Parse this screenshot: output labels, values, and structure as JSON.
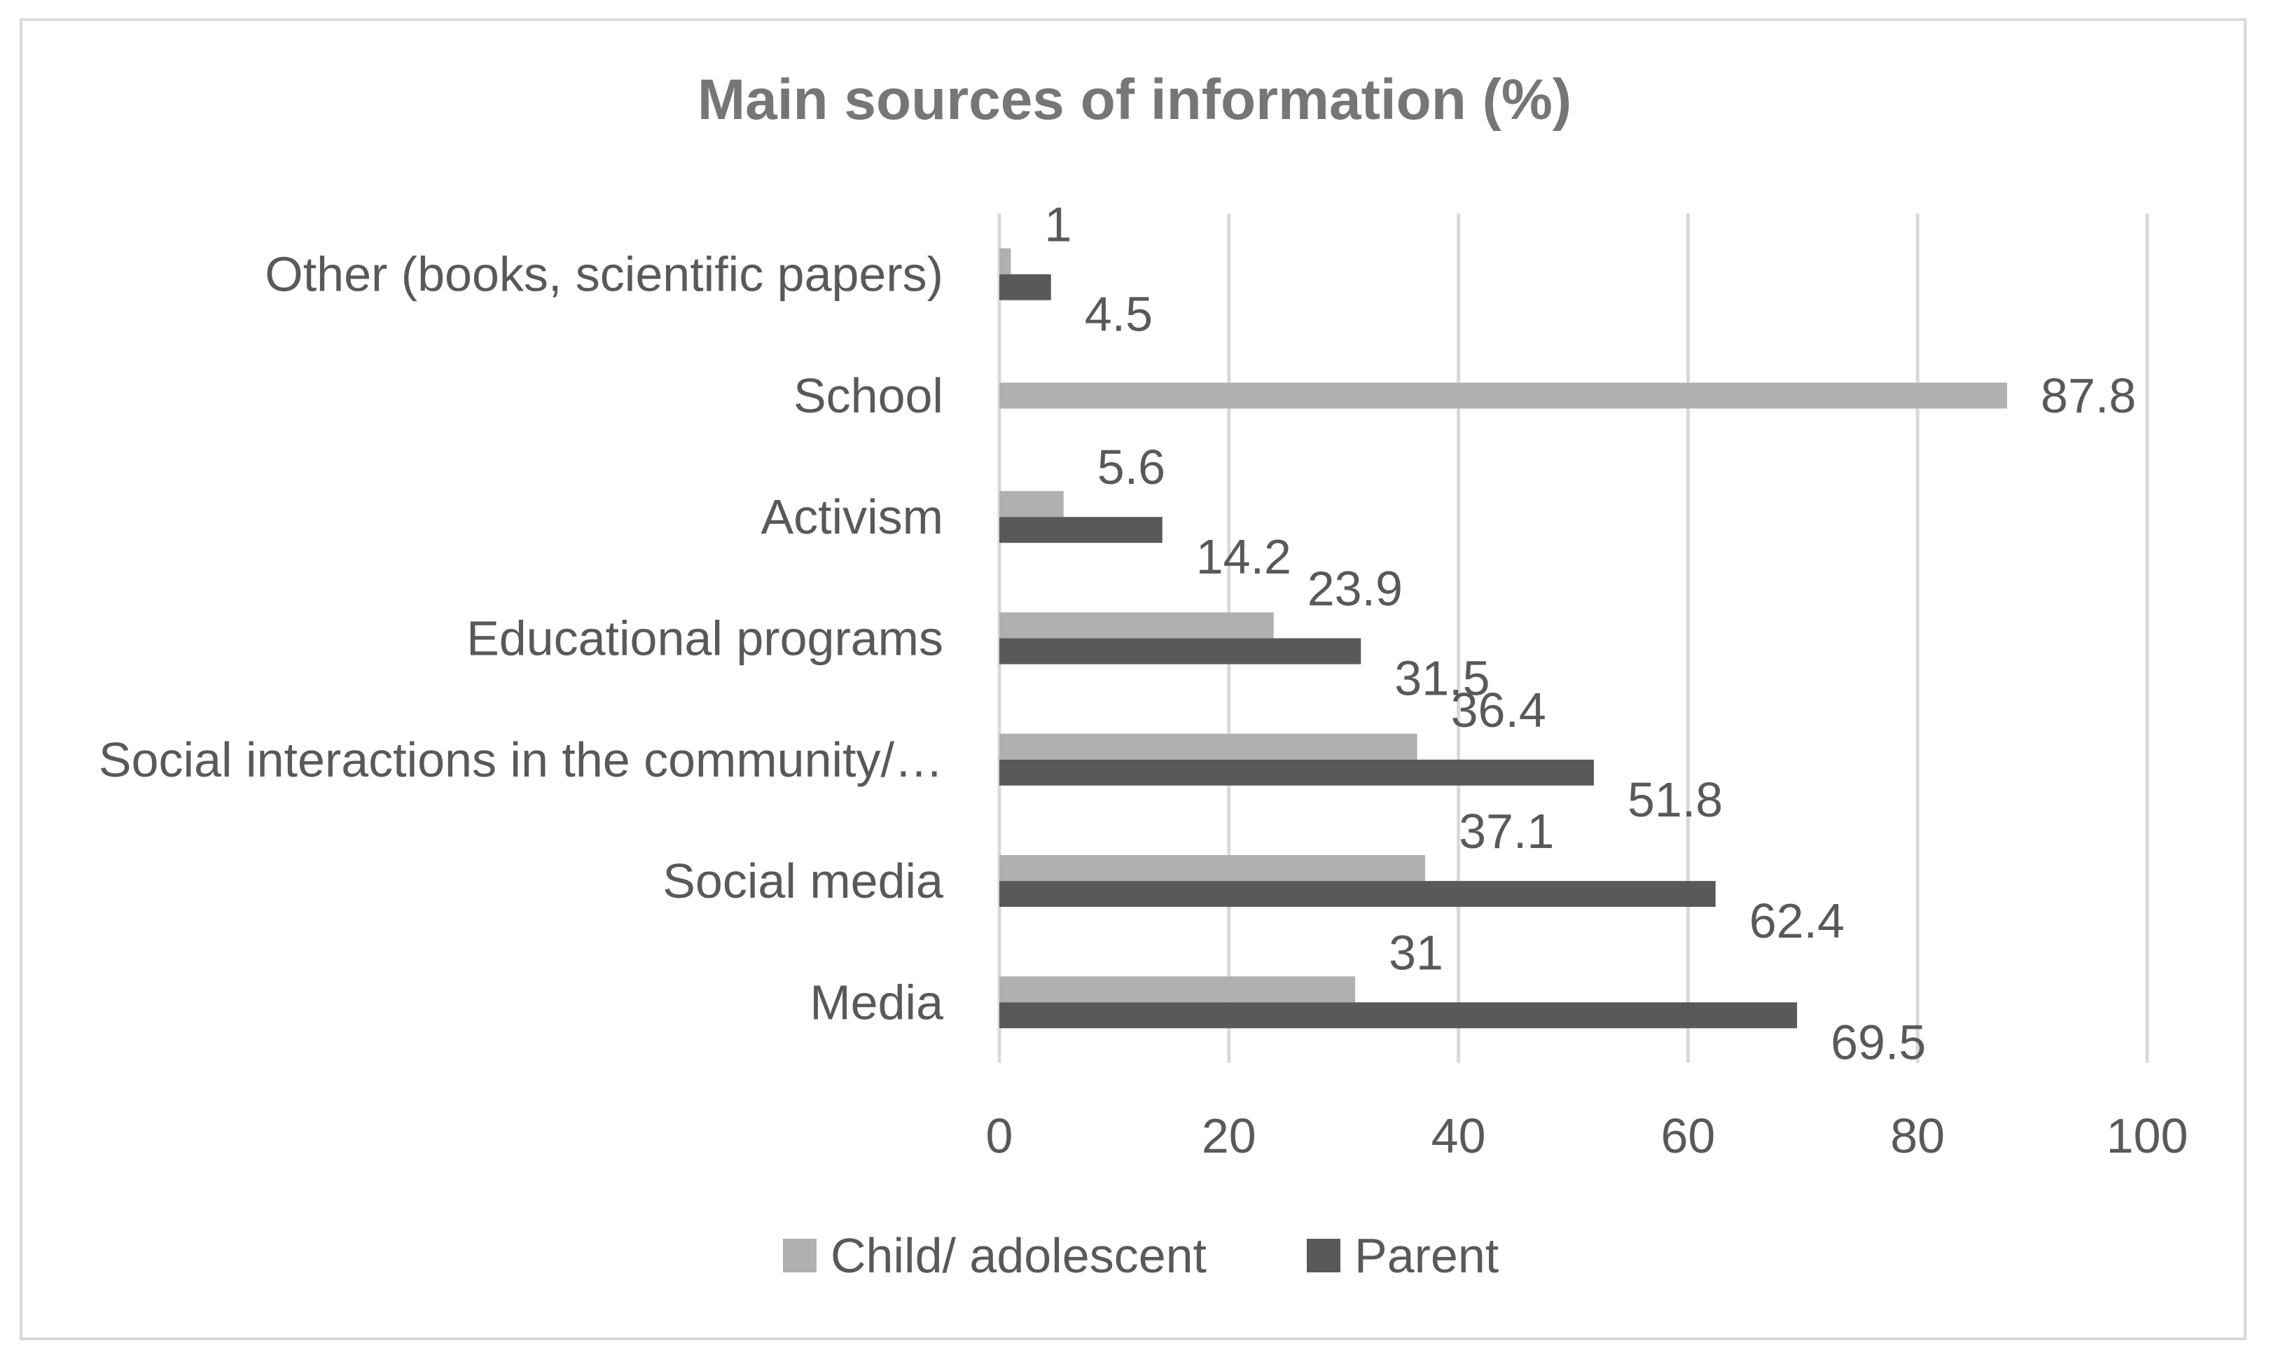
{
  "chart_data": {
    "type": "bar",
    "orientation": "horizontal",
    "title": "Main sources of information (%)",
    "xlabel": "",
    "ylabel": "",
    "xlim": [
      0,
      100
    ],
    "x_ticks": [
      0,
      20,
      40,
      60,
      80,
      100
    ],
    "grid": true,
    "legend_position": "bottom",
    "categories": [
      "Other (books, scientific papers)",
      "School",
      "Activism",
      "Educational programs",
      "Social interactions in the community/…",
      "Social media",
      "Media"
    ],
    "series": [
      {
        "name": "Child/ adolescent",
        "color": "#b0b0b0",
        "values": [
          1,
          87.8,
          5.6,
          23.9,
          36.4,
          37.1,
          31
        ],
        "labels": [
          "1",
          "87.8",
          "5.6",
          "23.9",
          "36.4",
          "37.1",
          "31"
        ]
      },
      {
        "name": "Parent",
        "color": "#595959",
        "values": [
          4.5,
          null,
          14.2,
          31.5,
          51.8,
          62.4,
          69.5
        ],
        "labels": [
          "4.5",
          null,
          "14.2",
          "31.5",
          "51.8",
          "62.4",
          "69.5"
        ]
      }
    ]
  }
}
